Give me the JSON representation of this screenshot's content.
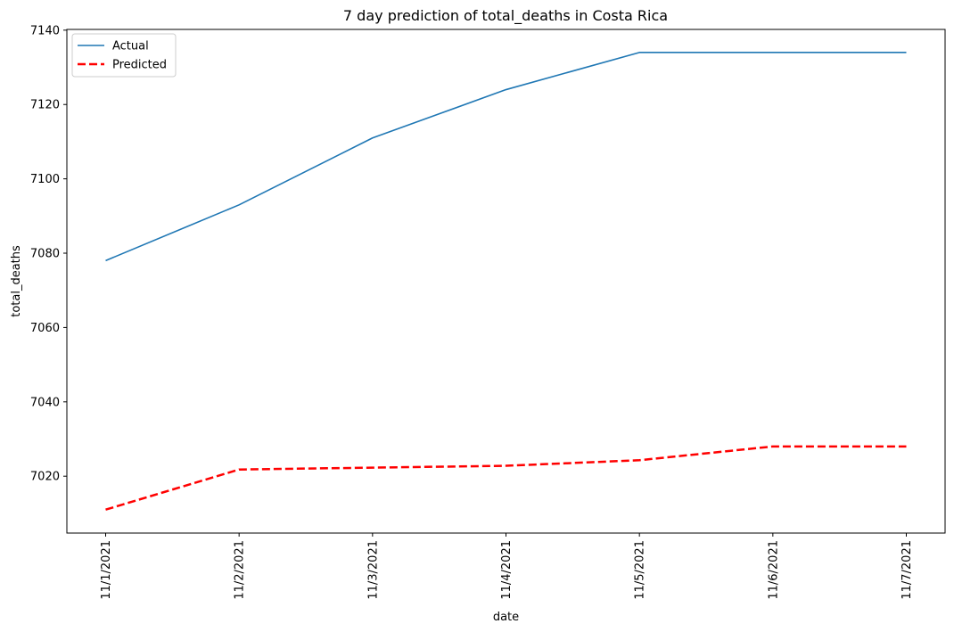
{
  "chart_data": {
    "type": "line",
    "title": "7 day prediction of total_deaths in Costa Rica",
    "xlabel": "date",
    "ylabel": "total_deaths",
    "x": [
      "11/1/2021",
      "11/2/2021",
      "11/3/2021",
      "11/4/2021",
      "11/5/2021",
      "11/6/2021",
      "11/7/2021"
    ],
    "ylim": [
      7004.7,
      7140.2
    ],
    "yticks": [
      7020,
      7040,
      7060,
      7080,
      7100,
      7120,
      7140
    ],
    "grid": false,
    "legend_position": "top-left",
    "series": [
      {
        "name": "Actual",
        "values": [
          7078,
          7093,
          7111,
          7124,
          7134,
          7134,
          7134
        ],
        "color": "#1f77b4",
        "style": "solid"
      },
      {
        "name": "Predicted",
        "values": [
          7011,
          7021.8,
          7022.3,
          7022.8,
          7024.3,
          7028,
          7028
        ],
        "color": "#ff0000",
        "style": "dashed"
      }
    ]
  }
}
